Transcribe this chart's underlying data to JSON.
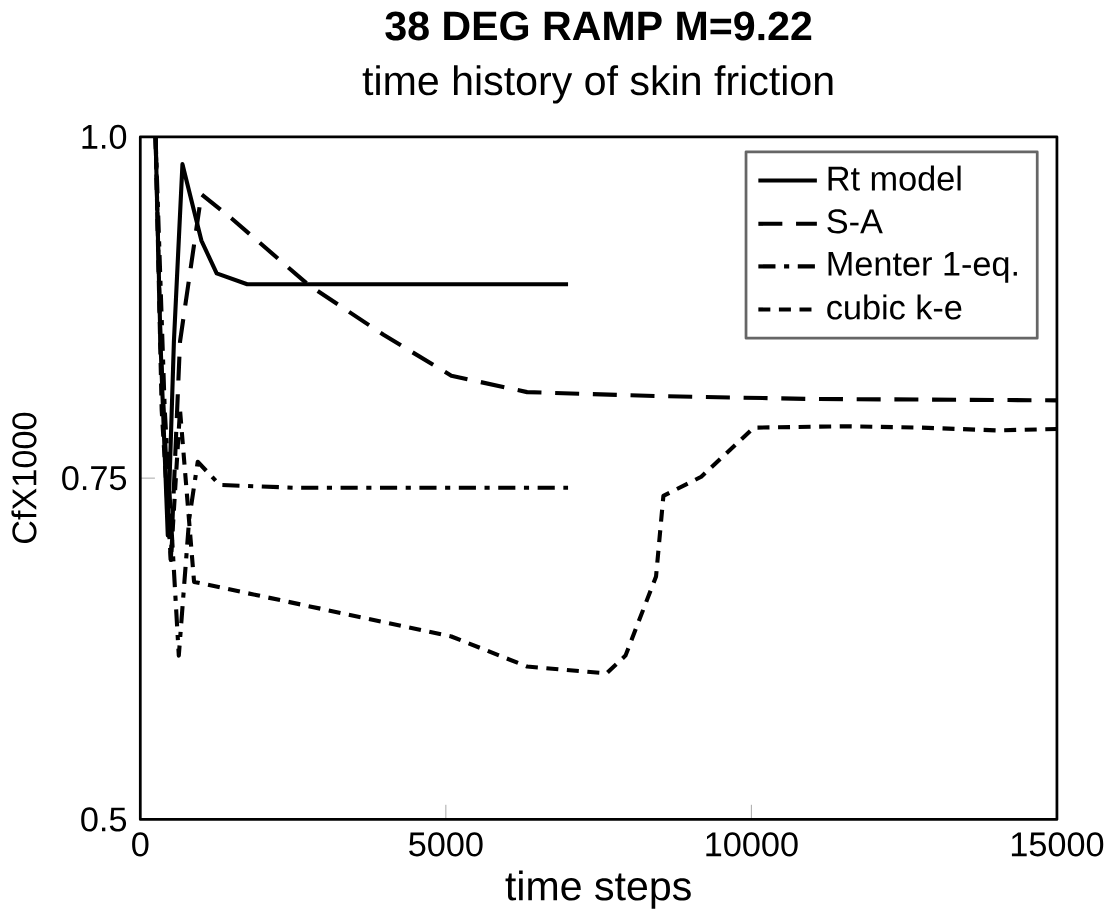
{
  "chart_data": {
    "type": "line",
    "title": "**38 DEG RAMP  M=9.22**",
    "subtitle": "time history of skin friction",
    "xlabel": "time steps",
    "ylabel": "CfX1000",
    "xlim": [
      0,
      15000
    ],
    "ylim": [
      0.5,
      1.0
    ],
    "xticks": [
      0,
      5000,
      10000,
      15000
    ],
    "yticks": [
      0.5,
      0.75,
      {
        "value": 1.0,
        "label": "1.0"
      }
    ],
    "legend": "top right",
    "grid": false,
    "series": [
      {
        "name": "Rt model",
        "color": "#000000",
        "line_style": "solid",
        "x": [
          250,
          330,
          450,
          550,
          690,
          1000,
          1250,
          1750,
          3000,
          5000,
          7000
        ],
        "values": [
          1.0,
          0.85,
          0.708,
          0.85,
          0.98,
          0.924,
          0.9,
          0.892,
          0.892,
          0.892,
          0.892
        ]
      },
      {
        "name": "S-A",
        "color": "#000000",
        "line_style": "dashed",
        "x": [
          250,
          330,
          500,
          650,
          1000,
          1500,
          2740,
          3980,
          5090,
          6330,
          8560,
          11000,
          15000
        ],
        "values": [
          1.0,
          0.85,
          0.69,
          0.85,
          0.958,
          0.94,
          0.892,
          0.855,
          0.825,
          0.813,
          0.81,
          0.808,
          0.807
        ]
      },
      {
        "name": "Menter 1-eq.",
        "color": "#000000",
        "line_style": "dashdot",
        "x": [
          250,
          400,
          630,
          800,
          940,
          1300,
          2500,
          5000,
          7000
        ],
        "values": [
          1.0,
          0.8,
          0.62,
          0.72,
          0.762,
          0.745,
          0.743,
          0.743,
          0.743
        ]
      },
      {
        "name": "cubic k-e",
        "color": "#000000",
        "line_style": "densedash",
        "x": [
          250,
          350,
          500,
          650,
          880,
          2990,
          5090,
          6330,
          7630,
          7940,
          8440,
          8560,
          9180,
          10040,
          11520,
          12790,
          14010,
          15000
        ],
        "values": [
          1.0,
          0.8,
          0.69,
          0.8,
          0.674,
          0.654,
          0.634,
          0.612,
          0.607,
          0.62,
          0.678,
          0.737,
          0.751,
          0.787,
          0.788,
          0.787,
          0.785,
          0.786
        ]
      }
    ]
  }
}
